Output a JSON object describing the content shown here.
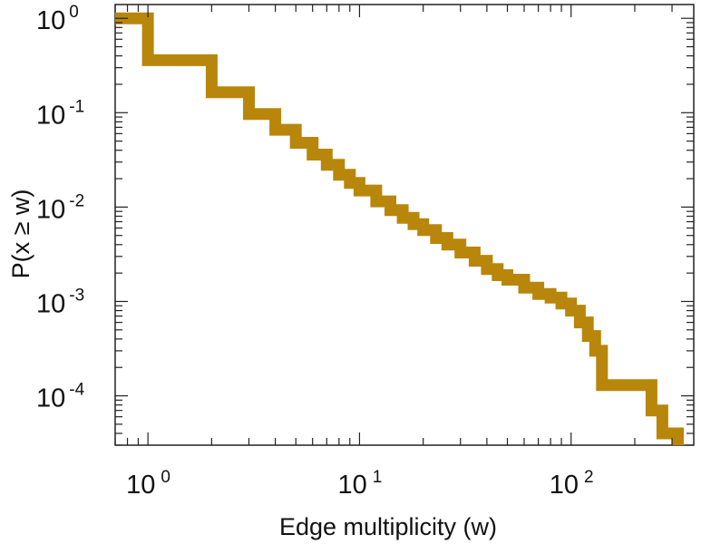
{
  "chart_data": {
    "type": "line",
    "title": "",
    "xlabel": "Edge multiplicity (w)",
    "ylabel": "P(x ≥ w)",
    "xscale": "log",
    "yscale": "log",
    "xlim": [
      0.7,
      380
    ],
    "ylim": [
      3e-05,
      1.4
    ],
    "grid": false,
    "legend": "none",
    "x_ticks": [
      {
        "base": "10",
        "exp": "0",
        "value": 1
      },
      {
        "base": "10",
        "exp": "1",
        "value": 10
      },
      {
        "base": "10",
        "exp": "2",
        "value": 100
      }
    ],
    "y_ticks": [
      {
        "base": "10",
        "exp": "0",
        "value": 1
      },
      {
        "base": "10",
        "exp": "-1",
        "value": 0.1
      },
      {
        "base": "10",
        "exp": "-2",
        "value": 0.01
      },
      {
        "base": "10",
        "exp": "-3",
        "value": 0.001
      },
      {
        "base": "10",
        "exp": "-4",
        "value": 0.0001
      }
    ],
    "series": [
      {
        "color": "#b8860b",
        "drawstyle": "steps-post",
        "x": [
          0.7,
          1,
          2,
          3,
          4,
          5,
          6,
          7,
          8,
          9,
          10,
          12,
          14,
          16,
          18,
          20,
          23,
          26,
          30,
          35,
          40,
          45,
          50,
          60,
          70,
          80,
          90,
          100,
          110,
          120,
          130,
          140,
          240,
          270,
          320
        ],
        "y": [
          1,
          0.36,
          0.165,
          0.097,
          0.066,
          0.048,
          0.036,
          0.028,
          0.022,
          0.018,
          0.015,
          0.0115,
          0.0093,
          0.0077,
          0.0066,
          0.0057,
          0.0047,
          0.004,
          0.0033,
          0.0027,
          0.0022,
          0.0019,
          0.0017,
          0.0014,
          0.0012,
          0.0011,
          0.00095,
          0.0008,
          0.0006,
          0.00043,
          0.0003,
          0.00013,
          7e-05,
          4e-05,
          3e-05
        ]
      }
    ]
  }
}
